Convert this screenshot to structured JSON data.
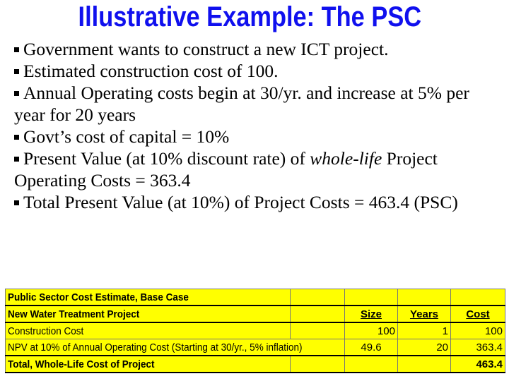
{
  "slide": {
    "title": "Illustrative Example: The PSC",
    "bullets": [
      "Government wants to construct a new ICT project.",
      "Estimated construction cost of 100.",
      "Annual Operating costs begin at 30/yr. and increase at 5% per year for 20 years",
      "Govt’s cost of capital = 10%",
      [
        "Present Value (at 10% discount rate) of ",
        "whole-life",
        " Project Operating Costs = 363.4"
      ],
      "Total Present Value (at 10%) of Project Costs = 463.4 (PSC)"
    ]
  },
  "table": {
    "caption": "Public Sector Cost Estimate, Base Case",
    "project": "New Water Treatment Project",
    "headers": [
      "Size",
      "Years",
      "Cost"
    ],
    "rows": [
      {
        "label": "Construction Cost",
        "size": "100",
        "years": "1",
        "cost": "100"
      },
      {
        "label": "NPV at 10% of Annual Operating Cost (Starting at 30/yr., 5% inflation)",
        "size": "49.6",
        "years": "20",
        "cost": "363.4"
      }
    ],
    "total": {
      "label": "Total, Whole-Life Cost of Project",
      "cost": "463.4"
    },
    "fill_color": "#ffff00"
  }
}
